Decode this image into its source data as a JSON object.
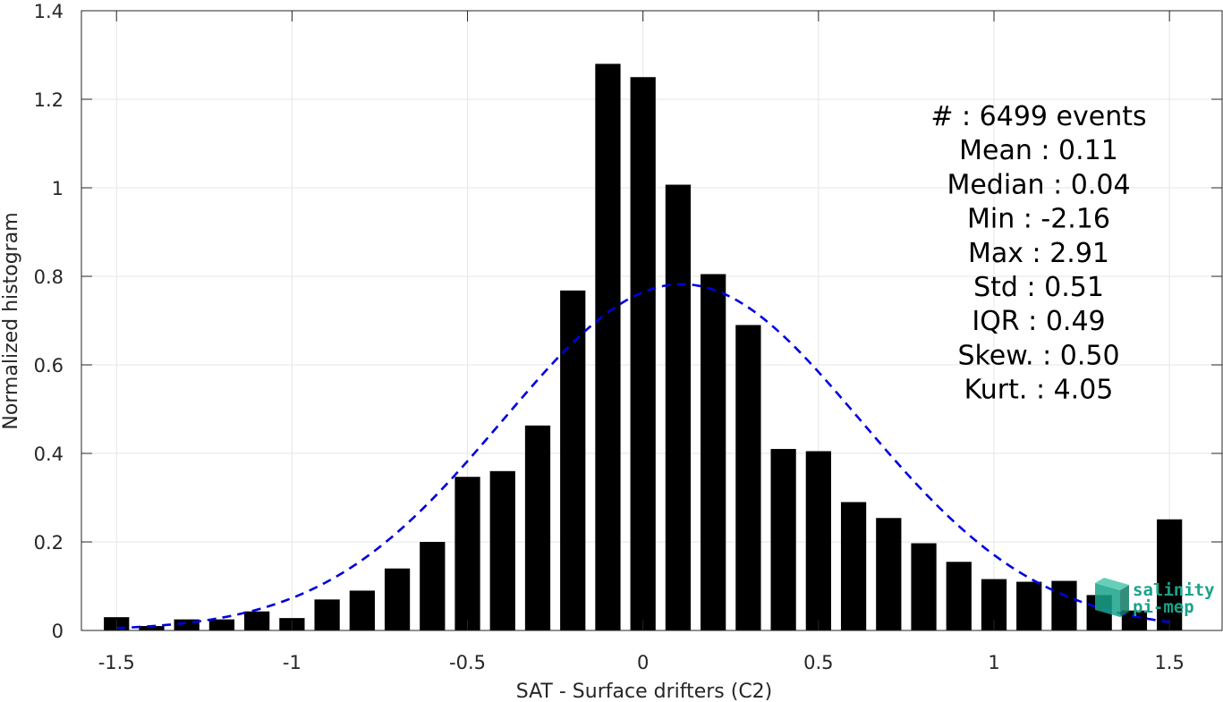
{
  "chart_data": {
    "type": "bar",
    "xlabel": "SAT - Surface drifters (C2)",
    "ylabel": "Normalized histogram",
    "xlim": [
      -1.6,
      1.65
    ],
    "ylim": [
      0,
      1.4
    ],
    "grid": true,
    "xticks": [
      -1.5,
      -1,
      -0.5,
      0,
      0.5,
      1,
      1.5
    ],
    "xtick_labels": [
      "-1.5",
      "-1",
      "-0.5",
      "0",
      "0.5",
      "1",
      "1.5"
    ],
    "yticks": [
      0,
      0.2,
      0.4,
      0.6,
      0.8,
      1,
      1.2,
      1.4
    ],
    "ytick_labels": [
      "0",
      "0.2",
      "0.4",
      "0.6",
      "0.8",
      "1",
      "1.2",
      "1.4"
    ],
    "bin_width": 0.1,
    "x": [
      -1.5,
      -1.4,
      -1.3,
      -1.2,
      -1.1,
      -1.0,
      -0.9,
      -0.8,
      -0.7,
      -0.6,
      -0.5,
      -0.4,
      -0.3,
      -0.2,
      -0.1,
      0.0,
      0.1,
      0.2,
      0.3,
      0.4,
      0.5,
      0.6,
      0.7,
      0.8,
      0.9,
      1.0,
      1.1,
      1.2,
      1.3,
      1.4,
      1.5
    ],
    "values": [
      0.03,
      0.01,
      0.025,
      0.025,
      0.043,
      0.028,
      0.07,
      0.09,
      0.14,
      0.2,
      0.347,
      0.36,
      0.463,
      0.768,
      1.28,
      1.25,
      1.007,
      0.805,
      0.69,
      0.41,
      0.405,
      0.29,
      0.254,
      0.197,
      0.155,
      0.116,
      0.11,
      0.112,
      0.08,
      0.045,
      0.251
    ],
    "bar_color": "#000000",
    "fit": {
      "type": "gaussian",
      "mean": 0.11,
      "std": 0.51,
      "color": "#0000dd",
      "style": "dashed",
      "x_range": [
        -1.5,
        1.5
      ]
    },
    "stats": [
      {
        "label": "#  ",
        "value": ": 6499 events"
      },
      {
        "label": "Mean ",
        "value": ": 0.11"
      },
      {
        "label": "Median ",
        "value": ": 0.04"
      },
      {
        "label": "Min ",
        "value": ": -2.16"
      },
      {
        "label": "Max ",
        "value": ": 2.91"
      },
      {
        "label": "Std ",
        "value": ": 0.51"
      },
      {
        "label": "IQR ",
        "value": ": 0.49"
      },
      {
        "label": "Skew. ",
        "value": ": 0.50"
      },
      {
        "label": "Kurt. ",
        "value": ": 4.05"
      }
    ],
    "stats_placement": "top-right"
  },
  "logo": {
    "line1": "salinity",
    "line2": "pi-mep",
    "color": "#1aa38a",
    "icon": "salinity-cube-icon"
  }
}
